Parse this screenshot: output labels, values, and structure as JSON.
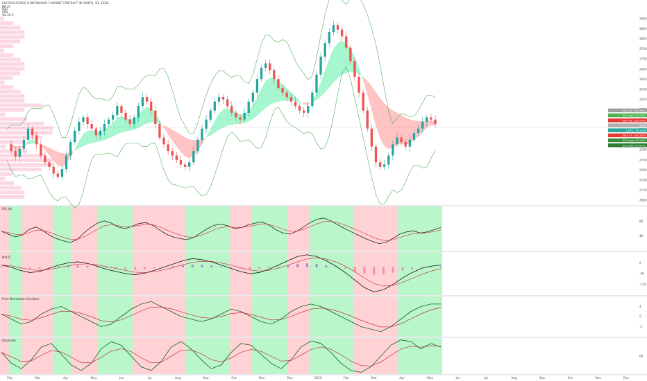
{
  "header": {
    "title": "COCOA FUTURES (CONTINUOUS: CURRENT CONTRACT IN FRONT), 1D, ICEUS",
    "indicator_lines": [
      "BB 20",
      "PVR",
      "OBV",
      "Vol 20 0 "
    ]
  },
  "colors": {
    "bull_candle": "#26a69a",
    "bear_candle": "#ef5350",
    "bull_zone": "#b9f6ca",
    "bear_zone": "#ffcdd2",
    "bb_band": "#4caf50",
    "cloud_bull": "#00e676",
    "cloud_bear": "#ff5252",
    "volume_profile": "#f48fb1",
    "pane_divider": "#d1d4dc"
  },
  "panes": [
    {
      "id": "price",
      "label": "COCOA FUTURES (CONTINUOUS: CURRENT CONTRACT IN FRONT), 1D, ICEUS"
    },
    {
      "id": "rsi",
      "label": "RSI_Vol"
    },
    {
      "id": "macd",
      "label": "MACD"
    },
    {
      "id": "pmo",
      "label": "Price Momentum Oscillator"
    },
    {
      "id": "stoch",
      "label": "Stochastic"
    }
  ],
  "axes": {
    "price_ticks": [
      "2900",
      "2860",
      "2800",
      "2760",
      "2700",
      "2660",
      "2600",
      "2560",
      "2520",
      "2480",
      "2400",
      "2360",
      "2320",
      "2280",
      "2240",
      "2200",
      "2160",
      "2120",
      "2080"
    ],
    "rsi_ticks": [
      "80",
      "40"
    ],
    "macd_ticks": [
      "0",
      "-60",
      "-120"
    ],
    "pmo_ticks": [
      "4",
      "0",
      "-4"
    ],
    "stoch_ticks": [
      "60"
    ],
    "time_ticks": [
      "Feb",
      "Mar",
      "Apr",
      "May",
      "Jun",
      "Jul",
      "Aug",
      "Sep",
      "Oct",
      "Nov",
      "Dec",
      "2020",
      "Feb",
      "Mar",
      "Apr",
      "May",
      "Jun",
      "Jul",
      "Aug",
      "Sep",
      "Oct",
      "Nov",
      "Dec"
    ]
  },
  "right_tags": [
    {
      "text": "EMA 15, 105 2491",
      "color": "#9e9e9e"
    },
    {
      "text": "BB Lower 20 2462",
      "color": "#4caf50"
    },
    {
      "text": "EMA 15, 105 2442",
      "color": "#e53935"
    },
    {
      "text": "2399",
      "color": "#b0b0b0"
    },
    {
      "text": "Low 1, 16 2396",
      "color": "#26a69a"
    },
    {
      "text": "EMA 15, 105 2387",
      "color": "#e53935"
    },
    {
      "text": "BB Lower 20 2367",
      "color": "#388e3c"
    },
    {
      "text": "BB Lower 20 2272",
      "color": "#2e7d32"
    }
  ],
  "chart_data": {
    "type": "candlestick",
    "price_range": [
      2060,
      2910
    ],
    "price_series": [
      2330,
      2300,
      2275,
      2310,
      2350,
      2400,
      2370,
      2330,
      2280,
      2250,
      2230,
      2200,
      2185,
      2220,
      2280,
      2340,
      2390,
      2430,
      2450,
      2420,
      2400,
      2370,
      2390,
      2420,
      2440,
      2460,
      2500,
      2470,
      2440,
      2420,
      2450,
      2500,
      2540,
      2520,
      2480,
      2420,
      2360,
      2330,
      2300,
      2280,
      2260,
      2240,
      2230,
      2250,
      2300,
      2350,
      2400,
      2440,
      2480,
      2520,
      2540,
      2530,
      2500,
      2470,
      2450,
      2440,
      2470,
      2520,
      2560,
      2620,
      2670,
      2690,
      2660,
      2620,
      2580,
      2560,
      2540,
      2520,
      2500,
      2480,
      2470,
      2500,
      2560,
      2640,
      2720,
      2780,
      2830,
      2860,
      2840,
      2810,
      2760,
      2700,
      2630,
      2560,
      2480,
      2400,
      2320,
      2250,
      2230,
      2240,
      2280,
      2330,
      2360,
      2340,
      2320,
      2350,
      2380,
      2400,
      2430,
      2450,
      2440,
      2420
    ],
    "bull_zones": [
      [
        0.02,
        0.05
      ],
      [
        0.12,
        0.16
      ],
      [
        0.22,
        0.3
      ],
      [
        0.42,
        0.52
      ],
      [
        0.57,
        0.65
      ],
      [
        0.7,
        0.8
      ],
      [
        0.9,
        1.0
      ]
    ],
    "rsi_range": [
      20,
      100
    ],
    "rsi_series": [
      55,
      50,
      45,
      48,
      58,
      63,
      57,
      48,
      42,
      38,
      35,
      40,
      52,
      62,
      70,
      74,
      70,
      63,
      60,
      64,
      69,
      71,
      66,
      58,
      50,
      45,
      42,
      40,
      44,
      52,
      60,
      66,
      68,
      65,
      60,
      62,
      67,
      70,
      72,
      66,
      58,
      52,
      50,
      55,
      63,
      71,
      77,
      79,
      74,
      67,
      60,
      54,
      48,
      42,
      37,
      33,
      35,
      42,
      50,
      54,
      56,
      52,
      54,
      58,
      62
    ],
    "macd_range": [
      -130,
      70
    ],
    "macd_series": [
      10,
      0,
      -15,
      -25,
      -20,
      -5,
      10,
      20,
      25,
      18,
      5,
      -10,
      -20,
      -30,
      -35,
      -28,
      -15,
      0,
      15,
      30,
      40,
      35,
      25,
      10,
      -5,
      -20,
      -30,
      -25,
      -10,
      10,
      30,
      50,
      58,
      50,
      30,
      5,
      -25,
      -60,
      -95,
      -115,
      -105,
      -80,
      -50,
      -25,
      -5,
      5,
      10
    ],
    "pmo_range": [
      -8,
      8
    ],
    "pmo_series": [
      1,
      -1,
      -3,
      -2,
      1,
      3,
      4,
      2,
      0,
      -2,
      -4,
      -3,
      0,
      3,
      5,
      6,
      4,
      2,
      0,
      -1,
      -2,
      -1,
      1,
      3,
      2,
      0,
      -2,
      -3,
      -1,
      2,
      4,
      5,
      4,
      2,
      0,
      -2,
      -4,
      -5,
      -6,
      -4,
      -1,
      2,
      4,
      5,
      5
    ],
    "stoch_range": [
      0,
      100
    ],
    "stoch_series": [
      60,
      30,
      15,
      40,
      75,
      85,
      55,
      25,
      10,
      30,
      70,
      90,
      80,
      50,
      20,
      10,
      35,
      75,
      90,
      70,
      40,
      15,
      25,
      60,
      85,
      80,
      55,
      30,
      15,
      40,
      75,
      92,
      85,
      60,
      30,
      10,
      5,
      20,
      50,
      80,
      95,
      90,
      70,
      85,
      75
    ]
  }
}
